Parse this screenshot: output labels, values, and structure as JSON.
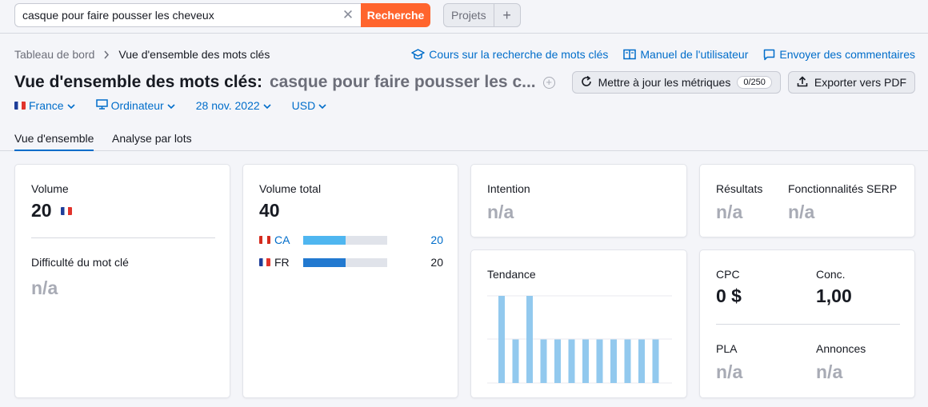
{
  "search": {
    "value": "casque pour faire pousser les cheveux",
    "button": "Recherche"
  },
  "projects": {
    "label": "Projets",
    "add": "+"
  },
  "breadcrumb": {
    "home": "Tableau de bord",
    "current": "Vue d'ensemble des mots clés"
  },
  "toplinks": [
    {
      "label": "Cours sur la recherche de mots clés",
      "icon": "graduation-cap-icon"
    },
    {
      "label": "Manuel de l'utilisateur",
      "icon": "book-icon"
    },
    {
      "label": "Envoyer des commentaires",
      "icon": "comment-icon"
    }
  ],
  "title": {
    "main": "Vue d'ensemble des mots clés:",
    "keyword": "casque pour faire pousser les c..."
  },
  "actions": {
    "update": "Mettre à jour les métriques",
    "counter": "0/250",
    "export": "Exporter vers PDF"
  },
  "filters": {
    "country": "France",
    "device": "Ordinateur",
    "date": "28 nov. 2022",
    "currency": "USD"
  },
  "tabs": [
    "Vue d'ensemble",
    "Analyse par lots"
  ],
  "colors": {
    "accent": "#006dca",
    "search_button": "#ff642d",
    "bar_light": "#4fb6f0",
    "bar_dark": "#2279d0",
    "trend": "#92c9ee"
  },
  "volume_card": {
    "volume_label": "Volume",
    "volume_value": "20",
    "difficulty_label": "Difficulté du mot clé",
    "difficulty_value": "n/a"
  },
  "total_card": {
    "label": "Volume total",
    "value": "40",
    "countries": [
      {
        "code": "CA",
        "value": "20",
        "share": 0.5,
        "linked": true
      },
      {
        "code": "FR",
        "value": "20",
        "share": 0.5,
        "linked": false
      }
    ]
  },
  "intent_card": {
    "label": "Intention",
    "value": "n/a"
  },
  "results_card": {
    "results_label": "Résultats",
    "results_value": "n/a",
    "serp_label": "Fonctionnalités SERP",
    "serp_value": "n/a"
  },
  "trend_card": {
    "label": "Tendance",
    "values": [
      1,
      0.5,
      1,
      0.5,
      0.5,
      0.5,
      0.5,
      0.5,
      0.5,
      0.5,
      0.5,
      0.5
    ]
  },
  "cpc_card": {
    "cpc_label": "CPC",
    "cpc_value": "0 $",
    "conc_label": "Conc.",
    "conc_value": "1,00",
    "pla_label": "PLA",
    "pla_value": "n/a",
    "ads_label": "Annonces",
    "ads_value": "n/a"
  }
}
